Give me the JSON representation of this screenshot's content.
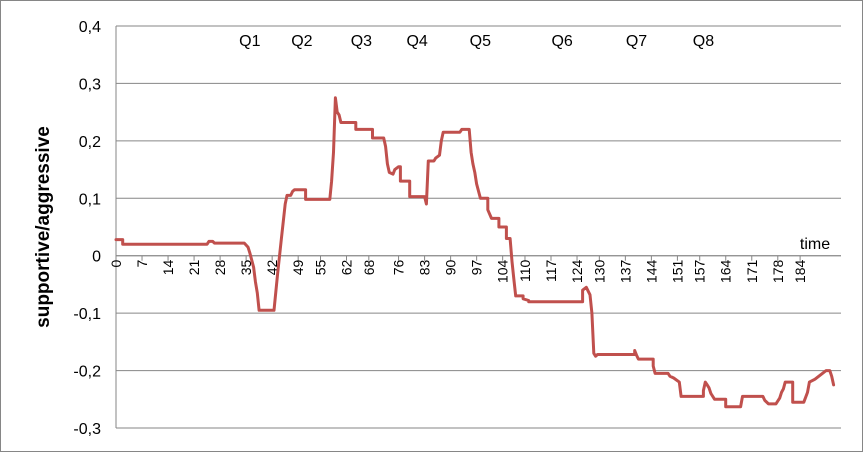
{
  "chart_data": {
    "type": "line",
    "xlabel": "time",
    "ylabel": "supportive/aggressive",
    "ylim": [
      -0.3,
      0.4
    ],
    "yticks": [
      0.4,
      0.3,
      0.2,
      0.1,
      0,
      -0.1,
      -0.2,
      -0.3
    ],
    "ytick_labels": [
      "0,4",
      "0,3",
      "0,2",
      "0,1",
      "0",
      "-0,1",
      "-0,2",
      "-0,3"
    ],
    "xlim": [
      0,
      195
    ],
    "xticks": [
      0,
      7,
      14,
      21,
      28,
      35,
      42,
      49,
      55,
      62,
      68,
      76,
      83,
      90,
      97,
      104,
      110,
      117,
      124,
      130,
      137,
      144,
      151,
      157,
      164,
      171,
      178,
      184
    ],
    "grid": "horizontal",
    "annotations": [
      {
        "label": "Q1",
        "x": 36
      },
      {
        "label": "Q2",
        "x": 50
      },
      {
        "label": "Q3",
        "x": 66
      },
      {
        "label": "Q4",
        "x": 81
      },
      {
        "label": "Q5",
        "x": 98
      },
      {
        "label": "Q6",
        "x": 120
      },
      {
        "label": "Q7",
        "x": 140
      },
      {
        "label": "Q8",
        "x": 158
      }
    ],
    "series": [
      {
        "color": "#c0504d",
        "points": [
          [
            0,
            0.028
          ],
          [
            1.8,
            0.028
          ],
          [
            1.8,
            0.02
          ],
          [
            24.5,
            0.02
          ],
          [
            25,
            0.025
          ],
          [
            26,
            0.025
          ],
          [
            26.5,
            0.022
          ],
          [
            34.5,
            0.022
          ],
          [
            35.5,
            0.015
          ],
          [
            36,
            0.005
          ],
          [
            37,
            -0.02
          ],
          [
            37.5,
            -0.045
          ],
          [
            38,
            -0.065
          ],
          [
            38.5,
            -0.095
          ],
          [
            42.5,
            -0.095
          ],
          [
            43.5,
            -0.03
          ],
          [
            44.5,
            0.03
          ],
          [
            45,
            0.06
          ],
          [
            45.5,
            0.09
          ],
          [
            46,
            0.105
          ],
          [
            47,
            0.105
          ],
          [
            47.5,
            0.112
          ],
          [
            48,
            0.115
          ],
          [
            51,
            0.115
          ],
          [
            51,
            0.098
          ],
          [
            57.5,
            0.098
          ],
          [
            58,
            0.13
          ],
          [
            58.5,
            0.18
          ],
          [
            59,
            0.275
          ],
          [
            59.5,
            0.25
          ],
          [
            60,
            0.245
          ],
          [
            60.5,
            0.232
          ],
          [
            64.5,
            0.232
          ],
          [
            64.5,
            0.22
          ],
          [
            69,
            0.22
          ],
          [
            69,
            0.205
          ],
          [
            72,
            0.205
          ],
          [
            72.5,
            0.19
          ],
          [
            73,
            0.16
          ],
          [
            73.5,
            0.145
          ],
          [
            74.5,
            0.142
          ],
          [
            75,
            0.15
          ],
          [
            76,
            0.155
          ],
          [
            76.5,
            0.155
          ],
          [
            76.5,
            0.13
          ],
          [
            79,
            0.13
          ],
          [
            79,
            0.103
          ],
          [
            83,
            0.103
          ],
          [
            83.5,
            0.09
          ],
          [
            84,
            0.165
          ],
          [
            85.5,
            0.165
          ],
          [
            86,
            0.17
          ],
          [
            87,
            0.175
          ],
          [
            87.5,
            0.2
          ],
          [
            88,
            0.215
          ],
          [
            92.5,
            0.215
          ],
          [
            93,
            0.22
          ],
          [
            95,
            0.22
          ],
          [
            95.5,
            0.18
          ],
          [
            96,
            0.16
          ],
          [
            96.5,
            0.145
          ],
          [
            97,
            0.125
          ],
          [
            98,
            0.1
          ],
          [
            100,
            0.1
          ],
          [
            100,
            0.08
          ],
          [
            101,
            0.065
          ],
          [
            103,
            0.065
          ],
          [
            103,
            0.05
          ],
          [
            105,
            0.05
          ],
          [
            105,
            0.03
          ],
          [
            106,
            0.03
          ],
          [
            106.5,
            -0.01
          ],
          [
            107,
            -0.04
          ],
          [
            107.5,
            -0.07
          ],
          [
            109.5,
            -0.07
          ],
          [
            109.5,
            -0.075
          ],
          [
            111,
            -0.078
          ],
          [
            111,
            -0.08
          ],
          [
            125.5,
            -0.08
          ],
          [
            125.5,
            -0.06
          ],
          [
            126.5,
            -0.055
          ],
          [
            127.5,
            -0.068
          ],
          [
            128,
            -0.1
          ],
          [
            128.5,
            -0.17
          ],
          [
            129,
            -0.175
          ],
          [
            129.5,
            -0.172
          ],
          [
            139.5,
            -0.172
          ],
          [
            139.5,
            -0.165
          ],
          [
            140,
            -0.173
          ],
          [
            140.5,
            -0.18
          ],
          [
            144.5,
            -0.18
          ],
          [
            144.5,
            -0.192
          ],
          [
            145,
            -0.205
          ],
          [
            148.5,
            -0.205
          ],
          [
            149,
            -0.21
          ],
          [
            150,
            -0.213
          ],
          [
            151.5,
            -0.22
          ],
          [
            152,
            -0.245
          ],
          [
            158,
            -0.245
          ],
          [
            158,
            -0.235
          ],
          [
            158.5,
            -0.22
          ],
          [
            159,
            -0.225
          ],
          [
            159.5,
            -0.23
          ],
          [
            160,
            -0.24
          ],
          [
            161,
            -0.25
          ],
          [
            164,
            -0.25
          ],
          [
            164,
            -0.263
          ],
          [
            168,
            -0.263
          ],
          [
            168.5,
            -0.245
          ],
          [
            174,
            -0.245
          ],
          [
            174.5,
            -0.252
          ],
          [
            175.5,
            -0.258
          ],
          [
            177.5,
            -0.258
          ],
          [
            178.5,
            -0.248
          ],
          [
            179,
            -0.238
          ],
          [
            179.5,
            -0.232
          ],
          [
            180,
            -0.22
          ],
          [
            182,
            -0.22
          ],
          [
            182,
            -0.255
          ],
          [
            185,
            -0.255
          ],
          [
            186,
            -0.238
          ],
          [
            186.5,
            -0.22
          ],
          [
            188,
            -0.215
          ],
          [
            189,
            -0.21
          ],
          [
            190,
            -0.205
          ],
          [
            191,
            -0.2
          ],
          [
            192,
            -0.2
          ],
          [
            192.5,
            -0.21
          ],
          [
            193,
            -0.225
          ]
        ]
      }
    ]
  }
}
